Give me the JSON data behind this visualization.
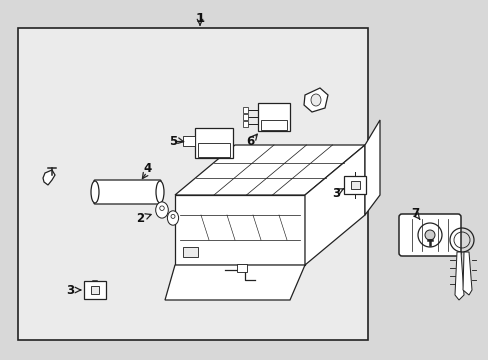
{
  "bg_color": "#d8d8d8",
  "panel_color": "#e0e0e0",
  "line_color": "#222222",
  "text_color": "#111111",
  "fig_width": 4.89,
  "fig_height": 3.6,
  "dpi": 100
}
